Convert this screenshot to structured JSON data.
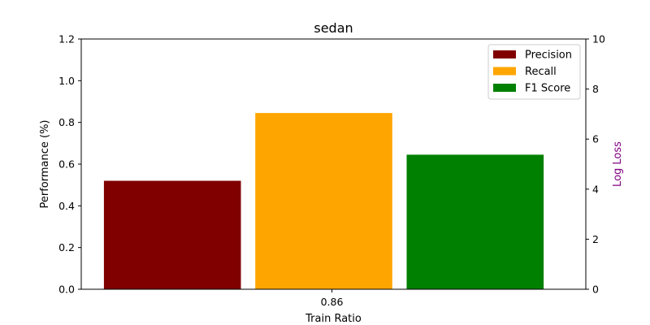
{
  "chart_data": {
    "type": "bar",
    "title": "sedan",
    "xlabel": "Train Ratio",
    "ylabel": "Performance (%)",
    "y2label": "Log Loss",
    "categories": [
      "0.86"
    ],
    "series": [
      {
        "name": "Precision",
        "values": [
          0.52
        ],
        "color": "#800000"
      },
      {
        "name": "Recall",
        "values": [
          0.845
        ],
        "color": "#ffa500"
      },
      {
        "name": "F1 Score",
        "values": [
          0.645
        ],
        "color": "#008000"
      }
    ],
    "ylim": [
      0,
      1.2
    ],
    "yticks": [
      "0.0",
      "0.2",
      "0.4",
      "0.6",
      "0.8",
      "1.0",
      "1.2"
    ],
    "y2lim": [
      0,
      10
    ],
    "y2ticks": [
      "0",
      "2",
      "4",
      "6",
      "8",
      "10"
    ],
    "y2label_color": "#800080",
    "legend_position": "top-right",
    "grid": false
  }
}
